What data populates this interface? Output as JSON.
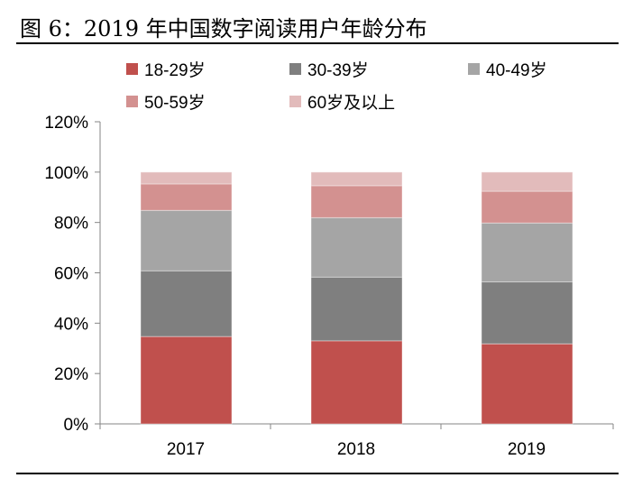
{
  "title": "图 6：2019 年中国数字阅读用户年龄分布",
  "chart_data": {
    "type": "bar",
    "stacked": true,
    "categories": [
      "2017",
      "2018",
      "2019"
    ],
    "series": [
      {
        "name": "18-29岁",
        "color": "#C0504D",
        "values": [
          34.7,
          33.0,
          31.8
        ]
      },
      {
        "name": "30-39岁",
        "color": "#7F7F7F",
        "values": [
          26.1,
          25.3,
          24.6
        ]
      },
      {
        "name": "40-49岁",
        "color": "#A5A5A5",
        "values": [
          24.0,
          23.6,
          23.4
        ]
      },
      {
        "name": "50-59岁",
        "color": "#D39190",
        "values": [
          10.5,
          12.7,
          12.6
        ]
      },
      {
        "name": "60岁及以上",
        "color": "#E2BBBB",
        "values": [
          4.7,
          5.4,
          7.6
        ]
      }
    ],
    "ylim": [
      0,
      120
    ],
    "yticks": [
      "0%",
      "20%",
      "40%",
      "60%",
      "80%",
      "100%",
      "120%"
    ],
    "grid": false,
    "legend": "top"
  }
}
